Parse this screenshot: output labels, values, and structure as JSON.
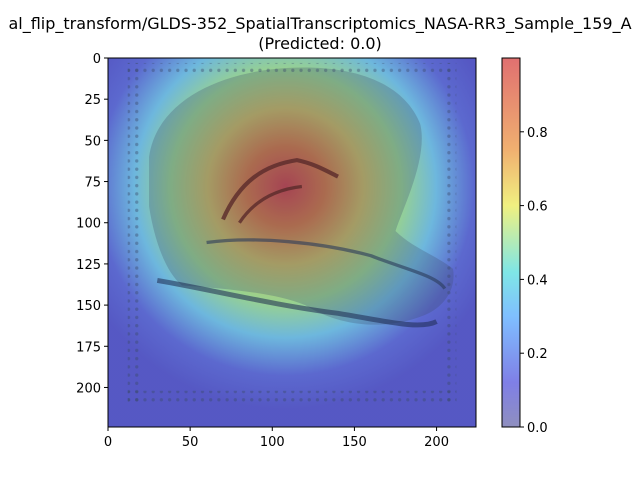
{
  "chart_data": {
    "type": "heatmap",
    "title_line1": "al_flip_transform/GLDS-352_SpatialTranscriptomics_NASA-RR3_Sample_159_A",
    "title_line2": "(Predicted: 0.0)",
    "x_ticks": [
      "0",
      "50",
      "100",
      "150",
      "200"
    ],
    "y_ticks": [
      "0",
      "25",
      "50",
      "75",
      "100",
      "125",
      "150",
      "175",
      "200"
    ],
    "colorbar_ticks": [
      "0.0",
      "0.2",
      "0.4",
      "0.6",
      "0.8"
    ],
    "xlim": [
      0,
      224
    ],
    "ylim": [
      224,
      0
    ],
    "colorbar_range": [
      0,
      1
    ],
    "colormap": "jet",
    "overlay": "Grad-CAM style heatmap over tissue section image",
    "hotspot": {
      "x": 108,
      "y": 78,
      "value": 1.0
    }
  },
  "colors": {
    "cold": "#4b4bc8",
    "hot": "#d04848",
    "tissue": "#2a3a5a"
  }
}
